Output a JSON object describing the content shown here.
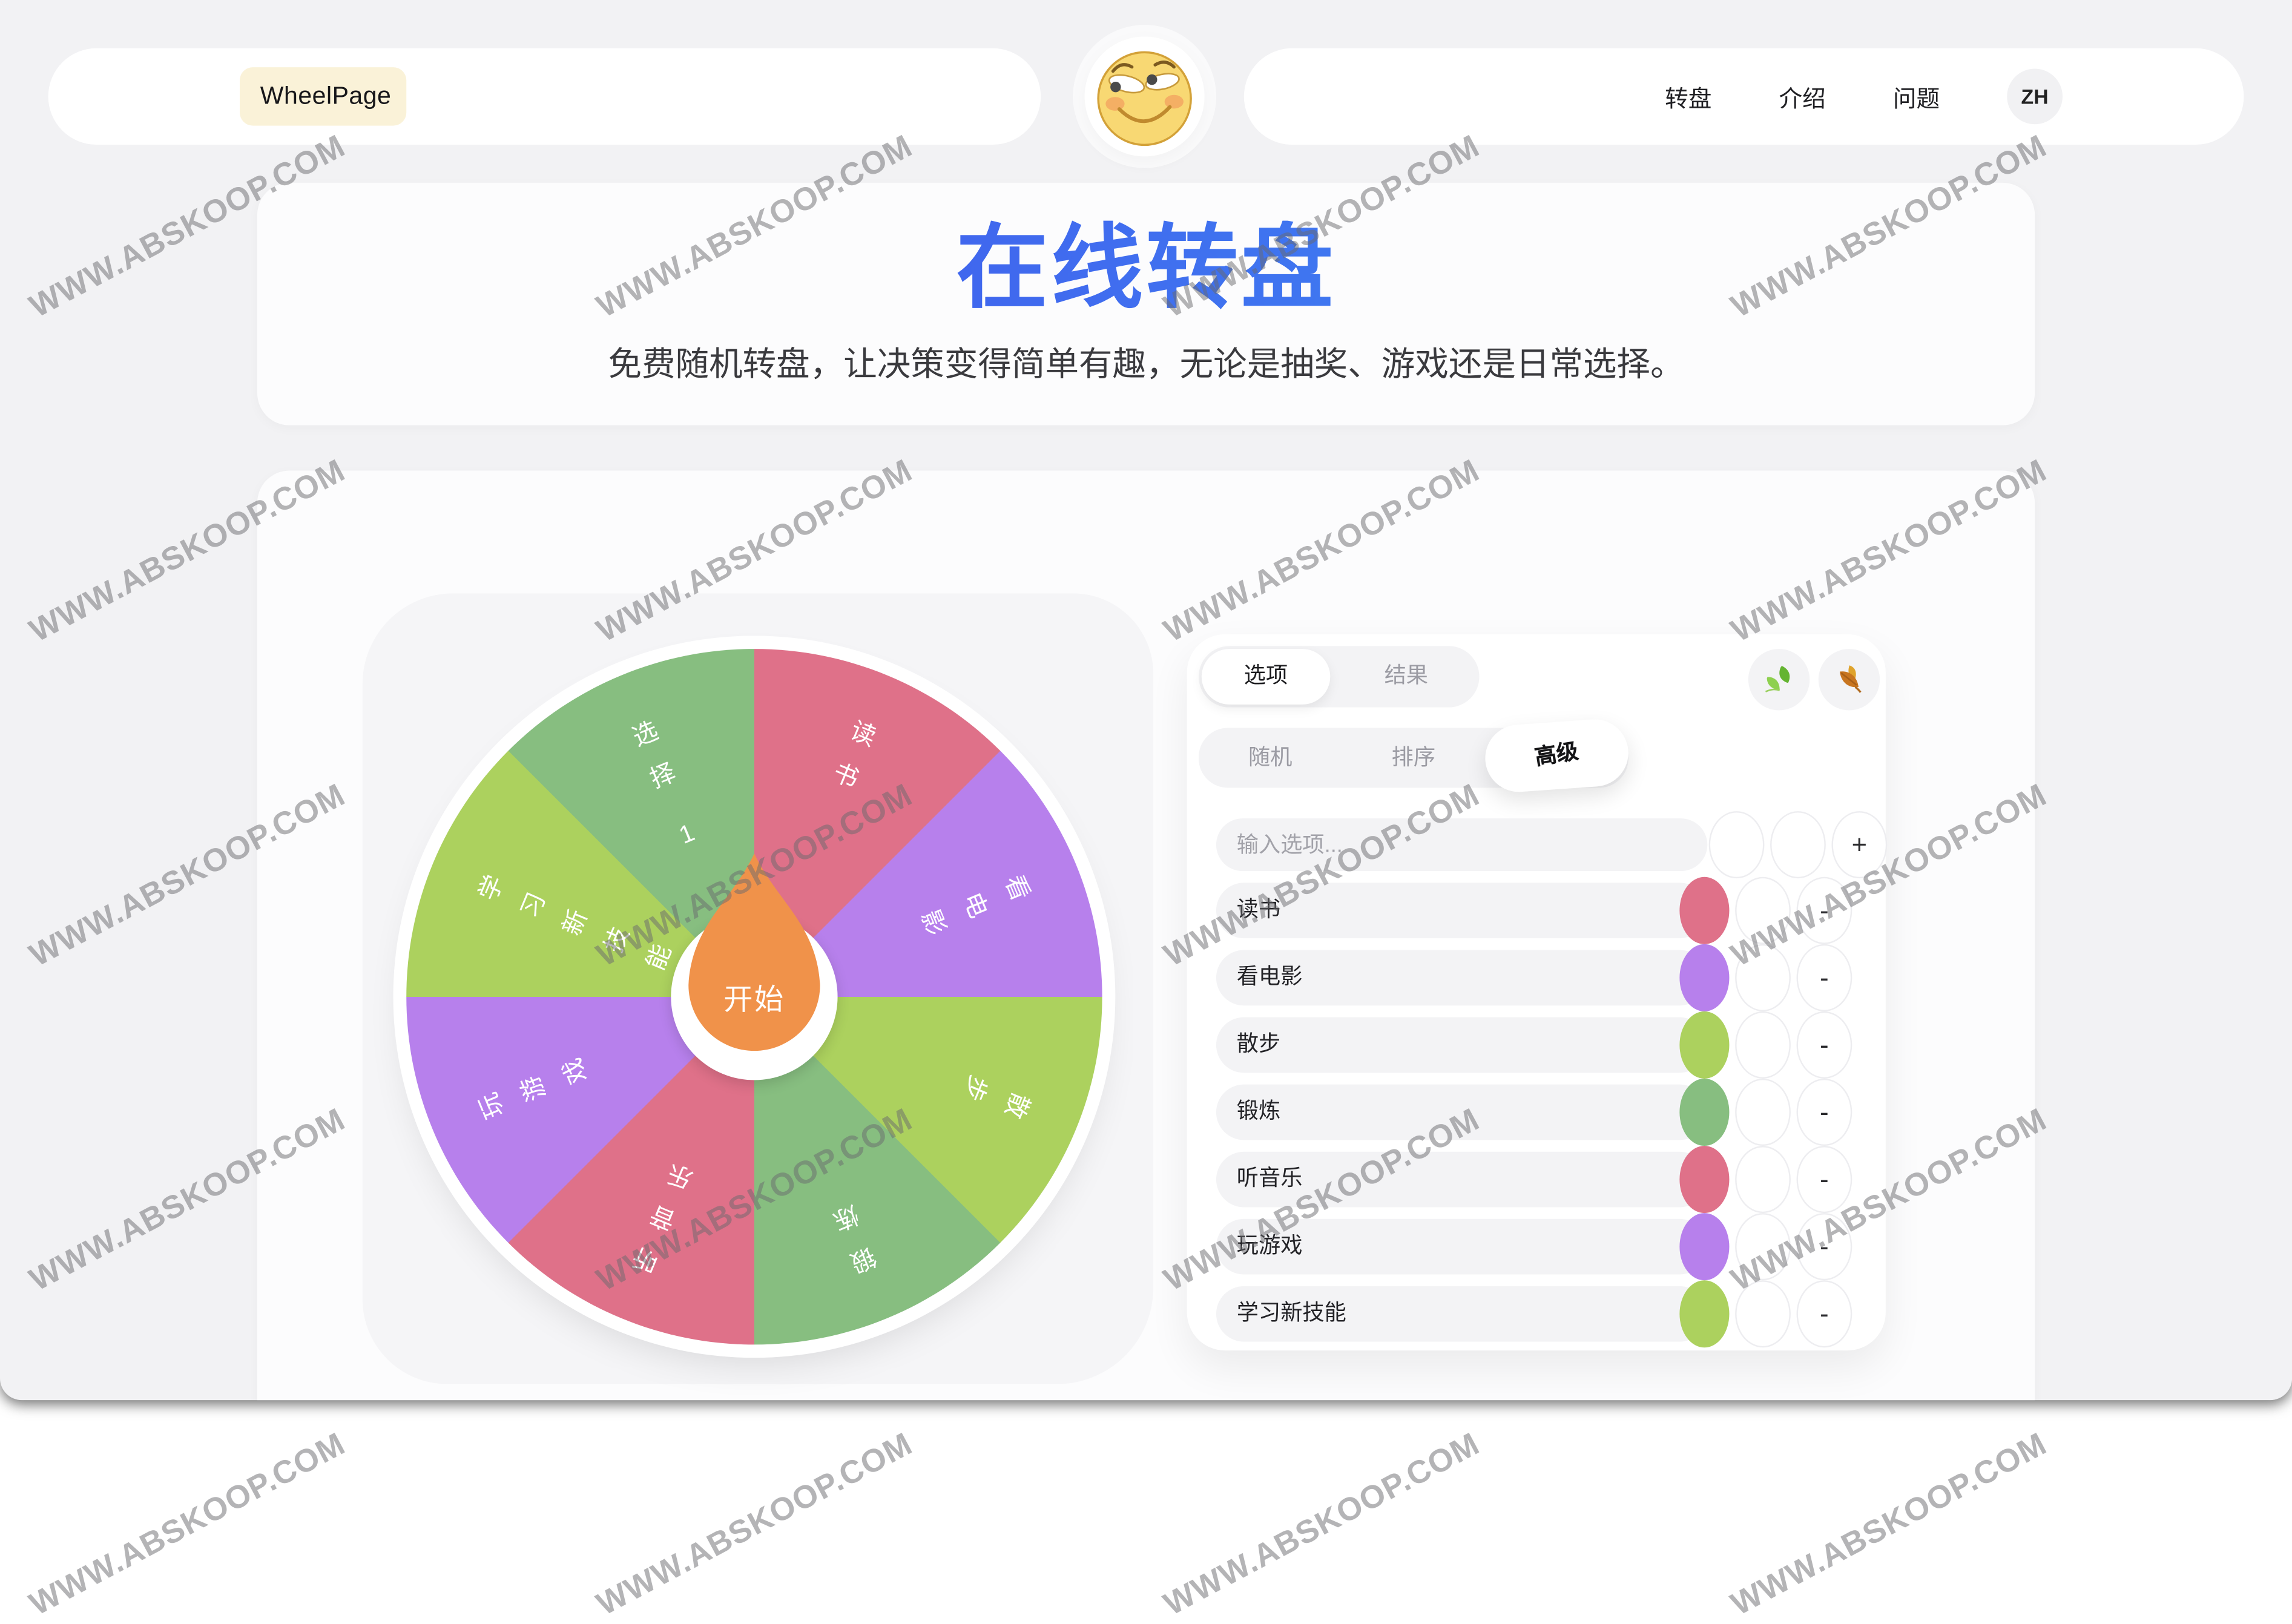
{
  "watermark": {
    "text": "WWW.ABSKOOP.COM"
  },
  "header": {
    "logo": "WheelPage",
    "logo_emoji": "smirking-face",
    "nav": [
      {
        "label": "转盘"
      },
      {
        "label": "介绍"
      },
      {
        "label": "问题"
      }
    ],
    "lang_button": "ZH"
  },
  "hero": {
    "title": "在线转盘",
    "subtitle": "免费随机转盘，让决策变得简单有趣，无论是抽奖、游戏还是日常选择。"
  },
  "wheel": {
    "start_label": "开始",
    "pointer_color": "#F0924A",
    "segments": [
      {
        "label": "读书",
        "color": "#DF7189"
      },
      {
        "label": "看电影",
        "color": "#B780EC"
      },
      {
        "label": "散步",
        "color": "#ACD15E"
      },
      {
        "label": "锻炼",
        "color": "#87BE80"
      },
      {
        "label": "听音乐",
        "color": "#DF7189"
      },
      {
        "label": "玩游戏",
        "color": "#B780EC"
      },
      {
        "label": "学习新技能",
        "color": "#ACD15E"
      },
      {
        "label": "选择 1",
        "color": "#87BE80"
      }
    ]
  },
  "panel": {
    "view_tabs": [
      {
        "label": "选项",
        "active": true
      },
      {
        "label": "结果",
        "active": false
      }
    ],
    "mode_tabs": [
      {
        "label": "随机",
        "active": false
      },
      {
        "label": "排序",
        "active": false
      },
      {
        "label": "高级",
        "active": true
      }
    ],
    "theme_icons": [
      {
        "name": "green-leaf-icon"
      },
      {
        "name": "fallen-leaf-icon"
      }
    ],
    "input": {
      "placeholder": "输入选项...",
      "add_label": "+"
    },
    "remove_label": "-",
    "options": [
      {
        "label": "读书",
        "color": "#DF7189"
      },
      {
        "label": "看电影",
        "color": "#B780EC"
      },
      {
        "label": "散步",
        "color": "#ACD15E"
      },
      {
        "label": "锻炼",
        "color": "#87BE80"
      },
      {
        "label": "听音乐",
        "color": "#DF7189"
      },
      {
        "label": "玩游戏",
        "color": "#B780EC"
      },
      {
        "label": "学习新技能",
        "color": "#ACD15E"
      }
    ]
  }
}
